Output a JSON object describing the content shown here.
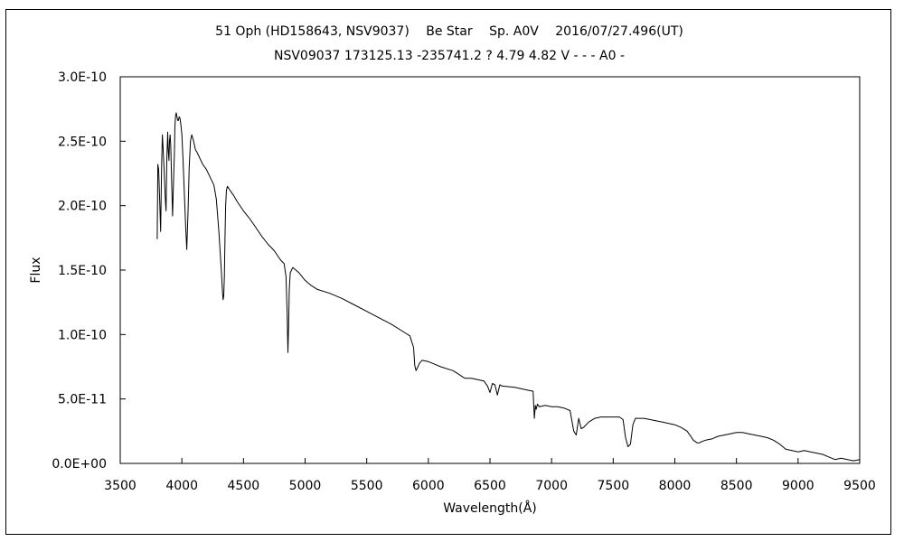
{
  "chart_data": {
    "type": "line",
    "title": "51 Oph (HD158643, NSV9037)　 Be Star　 Sp. A0V　 2016/07/27.496(UT)",
    "subtitle": "NSV09037 173125.13 -235741.2 ? 4.79 4.82 V - - - A0 -",
    "xlabel": "Wavelength(Å)",
    "ylabel": "Flux",
    "xlim": [
      3500,
      9500
    ],
    "ylim": [
      0,
      3e-10
    ],
    "x_ticks": [
      3500,
      4000,
      4500,
      5000,
      5500,
      6000,
      6500,
      7000,
      7500,
      8000,
      8500,
      9000,
      9500
    ],
    "y_ticks": [
      0,
      5e-11,
      1e-10,
      1.5e-10,
      2e-10,
      2.5e-10,
      3e-10
    ],
    "y_tick_labels": [
      "0.0E+00",
      "5.0E-11",
      "1.0E-10",
      "1.5E-10",
      "2.0E-10",
      "2.5E-10",
      "3.0E-10"
    ],
    "grid": false,
    "series": [
      {
        "x": [
          3800,
          3805,
          3812,
          3820,
          3828,
          3835,
          3842,
          3848,
          3855,
          3860,
          3866,
          3872,
          3878,
          3885,
          3889,
          3895,
          3900,
          3905,
          3910,
          3918,
          3925,
          3933,
          3939,
          3944,
          3950,
          3955,
          3962,
          3968,
          3972,
          3978,
          3985,
          3993,
          4000,
          4010,
          4020,
          4030,
          4040,
          4050,
          4060,
          4070,
          4080,
          4090,
          4095,
          4101,
          4106,
          4112,
          4120,
          4130,
          4140,
          4150,
          4170,
          4200,
          4230,
          4260,
          4280,
          4300,
          4320,
          4330,
          4335,
          4340,
          4345,
          4350,
          4355,
          4362,
          4370,
          4390,
          4420,
          4450,
          4500,
          4550,
          4600,
          4650,
          4700,
          4750,
          4800,
          4830,
          4845,
          4855,
          4861,
          4866,
          4872,
          4880,
          4900,
          4950,
          5000,
          5050,
          5100,
          5200,
          5300,
          5400,
          5500,
          5600,
          5700,
          5800,
          5850,
          5880,
          5890,
          5900,
          5910,
          5930,
          5950,
          6000,
          6050,
          6100,
          6200,
          6250,
          6280,
          6300,
          6350,
          6400,
          6450,
          6480,
          6500,
          6520,
          6540,
          6560,
          6580,
          6600,
          6700,
          6800,
          6850,
          6860,
          6868,
          6875,
          6885,
          6900,
          6950,
          7000,
          7050,
          7100,
          7150,
          7180,
          7200,
          7220,
          7240,
          7260,
          7300,
          7350,
          7400,
          7450,
          7500,
          7550,
          7580,
          7600,
          7620,
          7640,
          7660,
          7680,
          7700,
          7750,
          7800,
          7850,
          7900,
          7950,
          8000,
          8050,
          8100,
          8150,
          8180,
          8200,
          8220,
          8250,
          8300,
          8350,
          8400,
          8450,
          8500,
          8550,
          8600,
          8650,
          8700,
          8750,
          8800,
          8850,
          8900,
          8950,
          9000,
          9050,
          9100,
          9150,
          9200,
          9250,
          9300,
          9350,
          9400,
          9450,
          9500
        ],
        "values": [
          1.74e-10,
          2.32e-10,
          2.28e-10,
          2.05e-10,
          1.8e-10,
          2.28e-10,
          2.55e-10,
          2.45e-10,
          2.3e-10,
          2.18e-10,
          2.05e-10,
          1.96e-10,
          2.35e-10,
          2.57e-10,
          2.45e-10,
          2.35e-10,
          2.5e-10,
          2.55e-10,
          2.46e-10,
          2.15e-10,
          1.92e-10,
          2.2e-10,
          2.4e-10,
          2.62e-10,
          2.7e-10,
          2.72e-10,
          2.68e-10,
          2.66e-10,
          2.66e-10,
          2.69e-10,
          2.68e-10,
          2.62e-10,
          2.55e-10,
          2.35e-10,
          2.1e-10,
          1.85e-10,
          1.66e-10,
          1.95e-10,
          2.3e-10,
          2.5e-10,
          2.55e-10,
          2.52e-10,
          2.5e-10,
          2.48e-10,
          2.45e-10,
          2.43e-10,
          2.42e-10,
          2.4e-10,
          2.38e-10,
          2.36e-10,
          2.32e-10,
          2.28e-10,
          2.22e-10,
          2.16e-10,
          2.05e-10,
          1.8e-10,
          1.5e-10,
          1.32e-10,
          1.27e-10,
          1.3e-10,
          1.45e-10,
          1.75e-10,
          2e-10,
          2.12e-10,
          2.15e-10,
          2.12e-10,
          2.08e-10,
          2.03e-10,
          1.96e-10,
          1.9e-10,
          1.83e-10,
          1.76e-10,
          1.7e-10,
          1.65e-10,
          1.58e-10,
          1.55e-10,
          1.45e-10,
          1.15e-10,
          8.6e-11,
          1.05e-10,
          1.35e-10,
          1.48e-10,
          1.52e-10,
          1.48e-10,
          1.42e-10,
          1.38e-10,
          1.35e-10,
          1.32e-10,
          1.28e-10,
          1.23e-10,
          1.18e-10,
          1.13e-10,
          1.08e-10,
          1.02e-10,
          9.9e-11,
          9e-11,
          7.6e-11,
          7.2e-11,
          7.4e-11,
          7.8e-11,
          8e-11,
          7.9e-11,
          7.7e-11,
          7.5e-11,
          7.2e-11,
          6.9e-11,
          6.7e-11,
          6.6e-11,
          6.6e-11,
          6.5e-11,
          6.4e-11,
          6e-11,
          5.5e-11,
          6.2e-11,
          6.1e-11,
          5.3e-11,
          6.1e-11,
          6e-11,
          5.9e-11,
          5.7e-11,
          5.6e-11,
          3.5e-11,
          4.5e-11,
          4.2e-11,
          4.6e-11,
          4.4e-11,
          4.5e-11,
          4.4e-11,
          4.4e-11,
          4.3e-11,
          4.1e-11,
          2.5e-11,
          2.2e-11,
          3.5e-11,
          2.7e-11,
          2.8e-11,
          3.2e-11,
          3.5e-11,
          3.6e-11,
          3.6e-11,
          3.6e-11,
          3.6e-11,
          3.4e-11,
          2e-11,
          1.3e-11,
          1.5e-11,
          3e-11,
          3.5e-11,
          3.5e-11,
          3.5e-11,
          3.4e-11,
          3.3e-11,
          3.2e-11,
          3.1e-11,
          3e-11,
          2.8e-11,
          2.5e-11,
          1.8e-11,
          1.6e-11,
          1.6e-11,
          1.7e-11,
          1.8e-11,
          1.9e-11,
          2.1e-11,
          2.2e-11,
          2.3e-11,
          2.4e-11,
          2.4e-11,
          2.3e-11,
          2.2e-11,
          2.1e-11,
          2e-11,
          1.8e-11,
          1.5e-11,
          1.1e-11,
          1e-11,
          9e-12,
          1e-11,
          9e-12,
          8e-12,
          7e-12,
          5e-12,
          3e-12,
          4e-12,
          3e-12,
          2e-12,
          3e-12
        ]
      }
    ]
  }
}
